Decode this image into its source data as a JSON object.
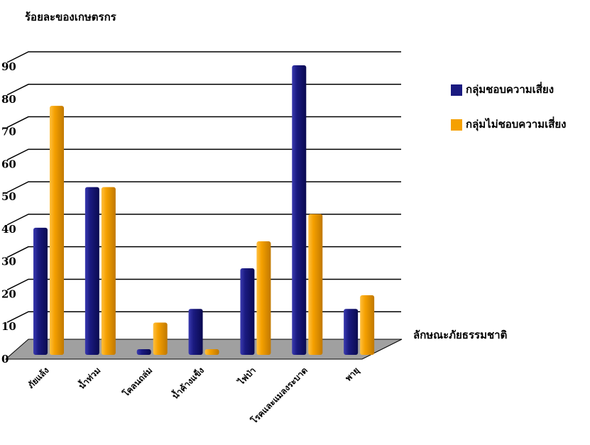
{
  "chart_data": {
    "type": "bar",
    "y_axis_title": "ร้อยละของเกษตรกร",
    "x_axis_title": "ลักษณะภัยธรรมชาติ",
    "categories": [
      "ภัยแล้ง",
      "น้ำท่วม",
      "โคลนถล่ม",
      "น้ำค้างแข็ง",
      "ไฟป่า",
      "โรคและแมลงระบาด",
      "พายุ"
    ],
    "series": [
      {
        "name": "กลุ่มชอบความเสี่ยง",
        "color": "#1a1a80",
        "values": [
          37.5,
          50,
          0,
          12.5,
          25,
          87.5,
          12.5
        ]
      },
      {
        "name": "กลุ่มไม่ชอบความเสี่ยง",
        "color": "#f5a000",
        "values": [
          75,
          50,
          8.3,
          0,
          33.3,
          41.7,
          16.7
        ]
      }
    ],
    "ylim": [
      0,
      90
    ],
    "yticks": [
      0,
      10,
      20,
      30,
      40,
      50,
      60,
      70,
      80,
      90
    ],
    "grid": true,
    "legend": "right"
  }
}
